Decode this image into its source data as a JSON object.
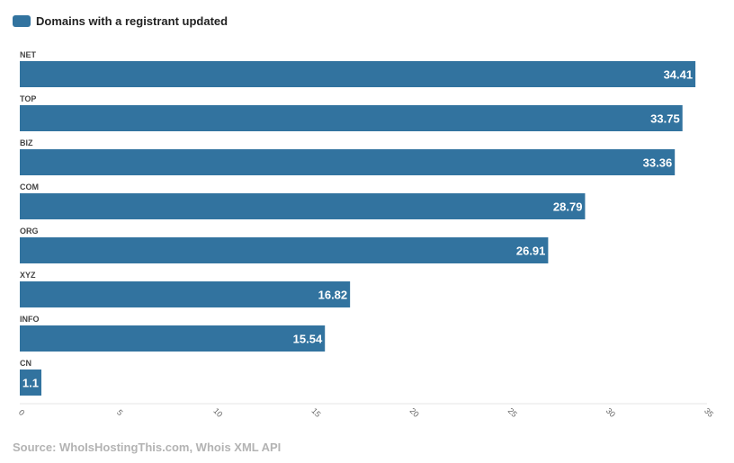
{
  "legend": {
    "label": "Domains with a registrant updated",
    "color": "#32739f"
  },
  "source": "Source: WhoIsHostingThis.com, Whois XML API",
  "chart_data": {
    "type": "bar",
    "orientation": "horizontal",
    "categories": [
      "NET",
      "TOP",
      "BIZ",
      "COM",
      "ORG",
      "XYZ",
      "INFO",
      "CN"
    ],
    "series": [
      {
        "name": "Domains with a registrant updated",
        "values": [
          34.41,
          33.75,
          33.36,
          28.79,
          26.91,
          16.82,
          15.54,
          1.1
        ],
        "labels": [
          "34.41",
          "33.75",
          "33.36",
          "28.79",
          "26.91",
          "16.82",
          "15.54",
          "1.1"
        ]
      }
    ],
    "xlim": [
      0,
      35
    ],
    "xticks": [
      0,
      5,
      10,
      15,
      20,
      25,
      30,
      35
    ],
    "xticklabels": [
      "0",
      "5",
      "10",
      "15",
      "20",
      "25",
      "30",
      "35"
    ],
    "xtick_rotation": 45,
    "legend_position": "top-left",
    "value_labels": "inside-end",
    "grid": false,
    "bar_color": "#32739f",
    "label_color": "#ffffff"
  }
}
